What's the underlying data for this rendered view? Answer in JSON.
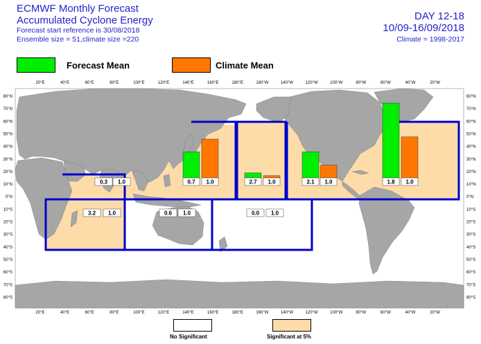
{
  "header": {
    "title_line1": "ECMWF Monthly Forecast",
    "title_line2": "Accumulated Cyclone Energy",
    "forecast_ref": "Forecast start reference is 30/08/2018",
    "ensemble": "Ensemble size = 51,climate size =220",
    "day_range": "DAY 12-18",
    "date_range": "10/09-16/09/2018",
    "climate": "Climate = 1998-2017"
  },
  "legend": {
    "forecast_label": "Forecast Mean",
    "forecast_color": "#00ee00",
    "climate_label": "Climate Mean",
    "climate_color": "#ff7700"
  },
  "colors": {
    "ocean": "#ffffff",
    "land": "#a6a6a6",
    "significant": "#fddcaa",
    "basin_border": "#0000cc"
  },
  "axes": {
    "lon_labels": [
      "20°E",
      "40°E",
      "60°E",
      "80°E",
      "100°E",
      "120°E",
      "140°E",
      "160°E",
      "180°E",
      "160°W",
      "140°W",
      "120°W",
      "100°W",
      "80°W",
      "60°W",
      "40°W",
      "20°W"
    ],
    "lat_labels": [
      "80°N",
      "70°N",
      "60°N",
      "50°N",
      "40°N",
      "30°N",
      "20°N",
      "10°N",
      "0°N",
      "10°S",
      "20°S",
      "30°S",
      "40°S",
      "50°S",
      "60°S",
      "70°S",
      "80°S"
    ]
  },
  "chart_data": {
    "type": "bar",
    "title": "Accumulated Cyclone Energy",
    "basins": [
      {
        "id": "north-indian",
        "forecast_label": "0.3",
        "climate_label": "1.0",
        "significant": true,
        "forecast": 0.3,
        "climate": 1.0
      },
      {
        "id": "south-west-indian",
        "forecast_label": "3.2",
        "climate_label": "1.0",
        "significant": true,
        "forecast": 3.2,
        "climate": 1.0
      },
      {
        "id": "australian",
        "forecast_label": "0.6",
        "climate_label": "1.0",
        "significant": false,
        "forecast": 0.6,
        "climate": 1.0
      },
      {
        "id": "south-pacific",
        "forecast_label": "0.0",
        "climate_label": "1.0",
        "significant": false,
        "forecast": 0.0,
        "climate": 1.0
      },
      {
        "id": "western-north-pacific",
        "forecast_label": "0.7",
        "climate_label": "1.0",
        "significant": true,
        "forecast": 0.7,
        "climate": 1.0,
        "forecast_bar_level": 0.47,
        "climate_bar_level": 0.7
      },
      {
        "id": "central-north-pacific",
        "forecast_label": "2.7",
        "climate_label": "1.0",
        "significant": true,
        "forecast": 2.7,
        "climate": 1.0,
        "forecast_bar_level": 0.09,
        "climate_bar_level": 0.04
      },
      {
        "id": "eastern-north-pacific",
        "forecast_label": "2.1",
        "climate_label": "1.0",
        "significant": true,
        "forecast": 2.1,
        "climate": 1.0,
        "forecast_bar_level": 0.47,
        "climate_bar_level": 0.23
      },
      {
        "id": "north-atlantic",
        "forecast_label": "1.8",
        "climate_label": "1.0",
        "significant": true,
        "forecast": 1.8,
        "climate": 1.0,
        "forecast_bar_level": 1.35,
        "climate_bar_level": 0.74
      }
    ]
  },
  "bottom_legend": {
    "not_significant": "No Significant",
    "significant": "Significant at 5%"
  }
}
